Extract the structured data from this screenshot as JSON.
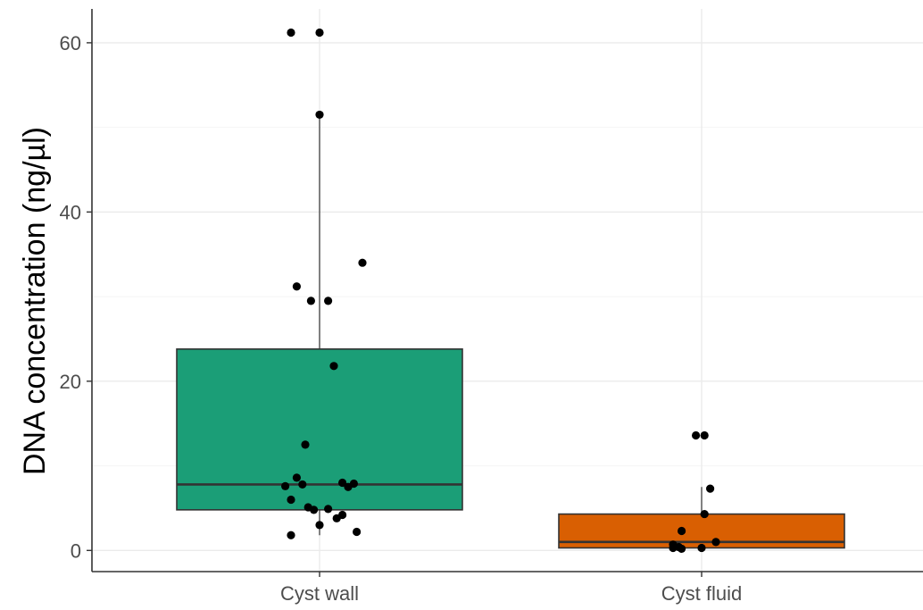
{
  "chart_data": {
    "type": "boxplot",
    "title": "",
    "xlabel": "",
    "ylabel": "DNA concentration (ng/µl)",
    "ylim": [
      -2.5,
      64
    ],
    "y_ticks": [
      0,
      20,
      40,
      60
    ],
    "y_minor_ticks": [
      10,
      30,
      50
    ],
    "grid": true,
    "legend": "none",
    "categories": [
      "Cyst wall",
      "Cyst fluid"
    ],
    "series": [
      {
        "category": "Cyst wall",
        "color": "#1b9e77",
        "box": {
          "q1": 4.8,
          "median": 7.8,
          "q3": 23.8,
          "whisker_low": 1.8,
          "whisker_high": 51.5
        },
        "points": [
          [
            -0.1,
            61.2
          ],
          [
            0.0,
            61.2
          ],
          [
            0.0,
            51.5
          ],
          [
            0.15,
            34.0
          ],
          [
            -0.08,
            31.2
          ],
          [
            -0.03,
            29.5
          ],
          [
            0.03,
            29.5
          ],
          [
            0.05,
            21.8
          ],
          [
            -0.05,
            12.5
          ],
          [
            -0.08,
            8.6
          ],
          [
            -0.12,
            7.6
          ],
          [
            -0.06,
            7.8
          ],
          [
            0.08,
            8.0
          ],
          [
            0.12,
            7.9
          ],
          [
            0.1,
            7.5
          ],
          [
            -0.1,
            6.0
          ],
          [
            -0.04,
            5.1
          ],
          [
            -0.02,
            4.8
          ],
          [
            0.03,
            4.9
          ],
          [
            0.08,
            4.2
          ],
          [
            0.06,
            3.8
          ],
          [
            0.0,
            3.0
          ],
          [
            0.13,
            2.2
          ],
          [
            -0.1,
            1.8
          ]
        ]
      },
      {
        "category": "Cyst fluid",
        "color": "#d95f02",
        "box": {
          "q1": 0.3,
          "median": 1.0,
          "q3": 4.3,
          "whisker_low": 0.0,
          "whisker_high": 7.5
        },
        "points": [
          [
            -0.02,
            13.6
          ],
          [
            0.01,
            13.6
          ],
          [
            0.03,
            7.3
          ],
          [
            0.01,
            4.3
          ],
          [
            -0.07,
            2.3
          ],
          [
            0.05,
            1.0
          ],
          [
            -0.1,
            0.7
          ],
          [
            -0.08,
            0.4
          ],
          [
            -0.1,
            0.3
          ],
          [
            -0.07,
            0.2
          ],
          [
            0.0,
            0.3
          ]
        ]
      }
    ]
  }
}
